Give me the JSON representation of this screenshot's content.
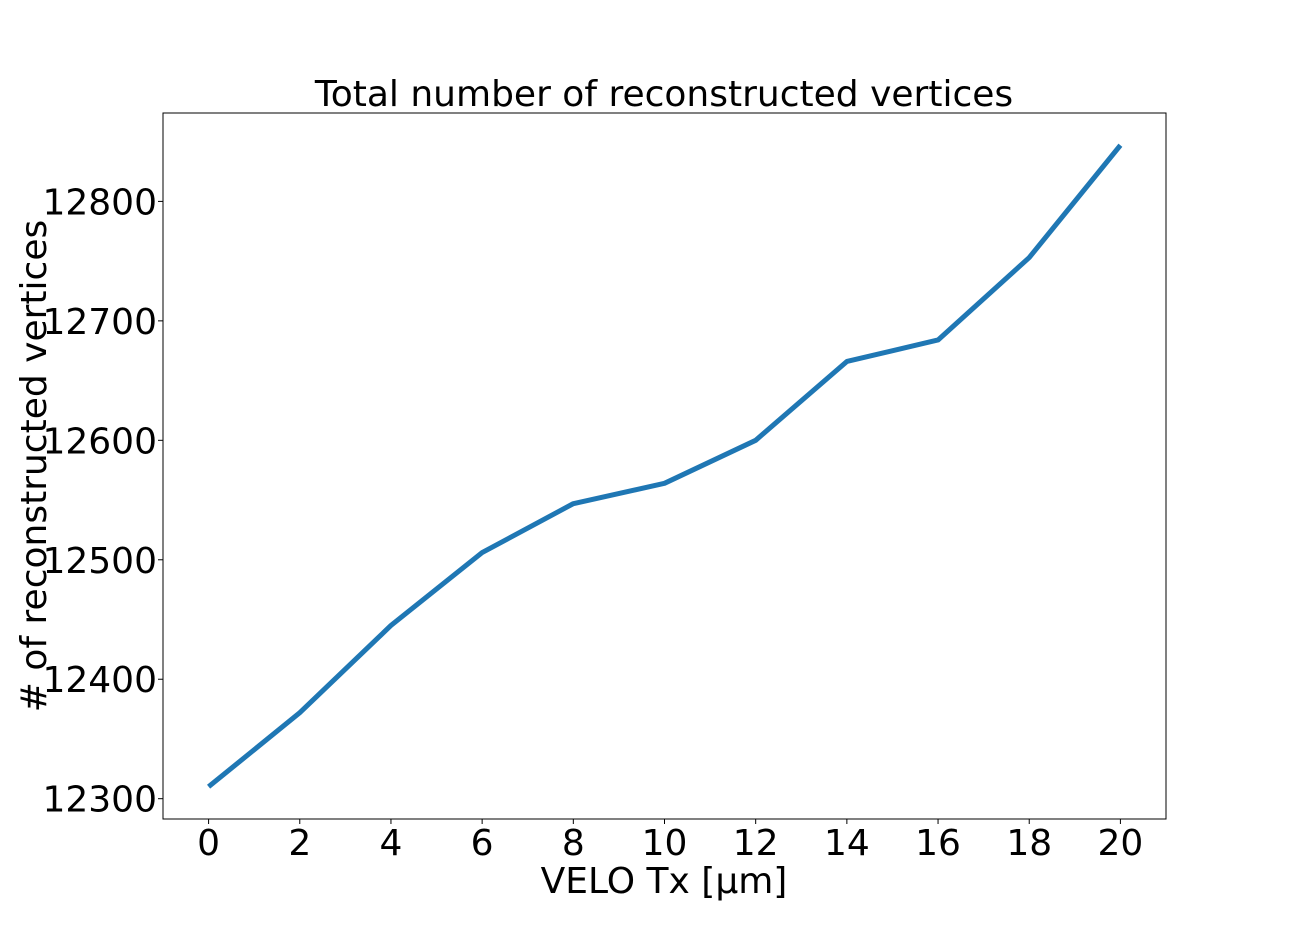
{
  "chart_data": {
    "type": "line",
    "title": "Total number of reconstructed vertices",
    "xlabel": "VELO Tx [μm]",
    "ylabel": "# of reconstructed vertices",
    "x": [
      0,
      2,
      4,
      6,
      8,
      10,
      12,
      14,
      16,
      18,
      20
    ],
    "series": [
      {
        "values": [
          12310,
          12372,
          12445,
          12506,
          12547,
          12564,
          12600,
          12666,
          12684,
          12753,
          12847
        ]
      }
    ],
    "xlim": [
      -1,
      21
    ],
    "ylim": [
      12283,
      12874
    ],
    "xticks": [
      0,
      2,
      4,
      6,
      8,
      10,
      12,
      14,
      16,
      18,
      20
    ],
    "yticks": [
      12300,
      12400,
      12500,
      12600,
      12700,
      12800
    ],
    "grid": false,
    "legend": "none",
    "line_color": "#1f77b4"
  }
}
